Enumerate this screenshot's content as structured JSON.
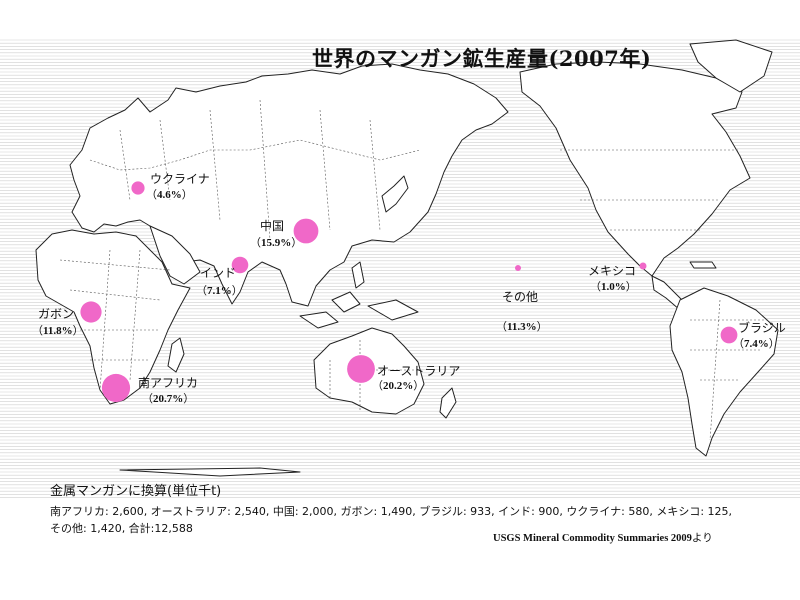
{
  "title": "世界のマンガン鉱生産量(2007年)",
  "bubble_color": "#f068c8",
  "countries": [
    {
      "id": "ukraine",
      "name": "ウクライナ",
      "share": "4.6%",
      "share_value": 4.6
    },
    {
      "id": "china",
      "name": "中国",
      "share": "15.9%",
      "share_value": 15.9
    },
    {
      "id": "india",
      "name": "インド",
      "share": "7.1%",
      "share_value": 7.1
    },
    {
      "id": "gabon",
      "name": "ガボン",
      "share": "11.8%",
      "share_value": 11.8
    },
    {
      "id": "southafrica",
      "name": "南アフリカ",
      "share": "20.7%",
      "share_value": 20.7
    },
    {
      "id": "australia",
      "name": "オーストラリア",
      "share": "20.2%",
      "share_value": 20.2
    },
    {
      "id": "other",
      "name": "その他",
      "share": "11.3%",
      "share_value": 11.3
    },
    {
      "id": "mexico",
      "name": "メキシコ",
      "share": "1.0%",
      "share_value": 1.0
    },
    {
      "id": "brazil",
      "name": "ブラジル",
      "share": "7.4%",
      "share_value": 7.4
    }
  ],
  "note": {
    "heading": "金属マンガンに換算(単位千t)",
    "line1": "南アフリカ: 2,600, オーストラリア: 2,540, 中国: 2,000, ガボン: 1,490, ブラジル: 933, インド: 900, ウクライナ: 580, メキシコ: 125,",
    "line2": "その他: 1,420, 合計:12,588"
  },
  "source": {
    "text": "USGS Mineral Commodity Summaries 2009",
    "suffix": "より"
  }
}
